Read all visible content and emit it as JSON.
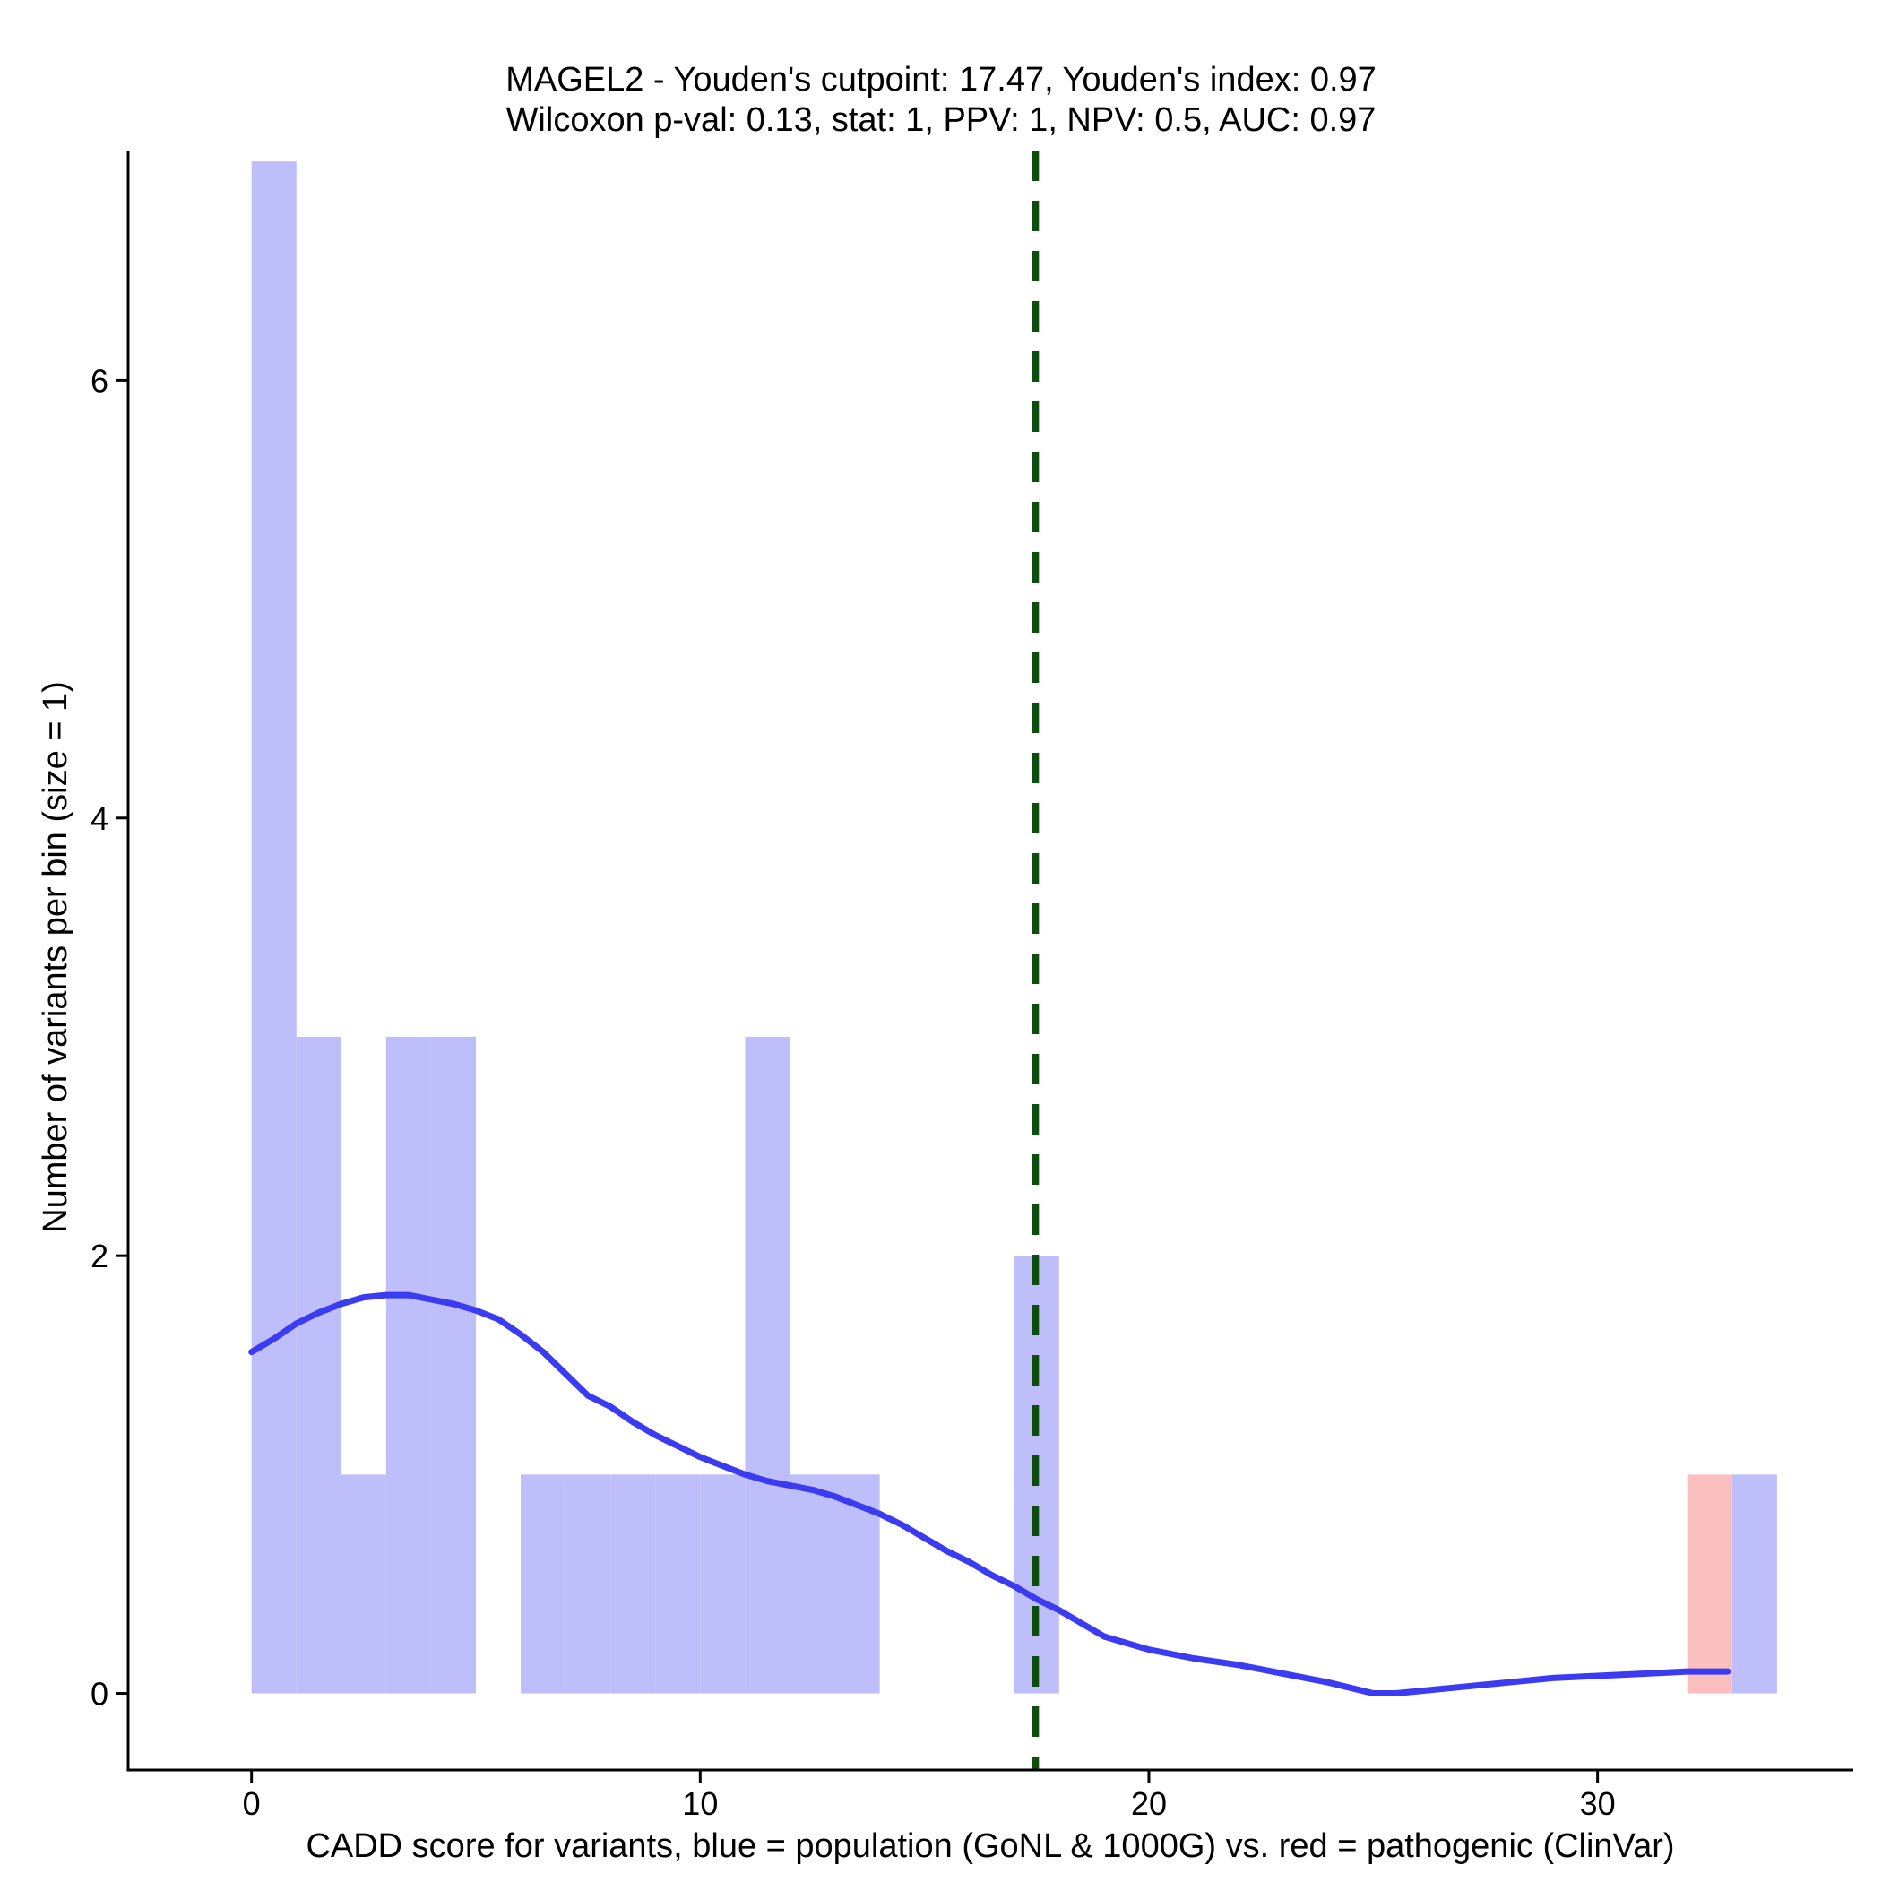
{
  "chart_data": {
    "type": "bar",
    "title": "MAGEL2 - Youden's cutpoint: 17.47, Youden's index: 0.97",
    "subtitle": "Wilcoxon p-val: 0.13, stat: 1, PPV: 1, NPV: 0.5, AUC: 0.97",
    "xlabel": "CADD score for variants, blue = population (GoNL & 1000G) vs. red = pathogenic (ClinVar)",
    "ylabel": "Number of variants per bin (size = 1)",
    "xlim": [
      -2.75,
      35.7
    ],
    "ylim": [
      -0.35,
      7.05
    ],
    "x_ticks": [
      0,
      10,
      20,
      30
    ],
    "y_ticks": [
      0,
      2,
      4,
      6
    ],
    "grid": false,
    "cutpoint": 17.47,
    "series": [
      {
        "name": "population",
        "color": "#bebefb",
        "bins": [
          {
            "x0": 0,
            "x1": 1,
            "count": 7
          },
          {
            "x0": 1,
            "x1": 2,
            "count": 3
          },
          {
            "x0": 2,
            "x1": 3,
            "count": 1
          },
          {
            "x0": 3,
            "x1": 4,
            "count": 3
          },
          {
            "x0": 4,
            "x1": 5,
            "count": 3
          },
          {
            "x0": 6,
            "x1": 7,
            "count": 1
          },
          {
            "x0": 7,
            "x1": 8,
            "count": 1
          },
          {
            "x0": 8,
            "x1": 9,
            "count": 1
          },
          {
            "x0": 9,
            "x1": 10,
            "count": 1
          },
          {
            "x0": 10,
            "x1": 11,
            "count": 1
          },
          {
            "x0": 11,
            "x1": 12,
            "count": 3
          },
          {
            "x0": 12,
            "x1": 13,
            "count": 1
          },
          {
            "x0": 13,
            "x1": 14,
            "count": 1
          },
          {
            "x0": 17,
            "x1": 18,
            "count": 2
          },
          {
            "x0": 33,
            "x1": 34,
            "count": 1
          }
        ]
      },
      {
        "name": "pathogenic",
        "color": "#fcbfc0",
        "bins": [
          {
            "x0": 32,
            "x1": 33,
            "count": 1
          }
        ]
      }
    ],
    "density": {
      "color": "#3b3bf2",
      "x": [
        0,
        0.5,
        1,
        1.5,
        2,
        2.5,
        3,
        3.5,
        4,
        4.5,
        5,
        5.5,
        6,
        6.5,
        7,
        7.5,
        8,
        8.5,
        9,
        9.5,
        10,
        10.5,
        11,
        11.5,
        12,
        12.5,
        13,
        13.5,
        14,
        14.5,
        15,
        15.5,
        16,
        16.5,
        17,
        17.5,
        18,
        18.5,
        19,
        19.5,
        20,
        21,
        22,
        23,
        24,
        25,
        25.5,
        26,
        27,
        28,
        29,
        30,
        31,
        32,
        32.9
      ],
      "y": [
        1.56,
        1.62,
        1.69,
        1.74,
        1.78,
        1.81,
        1.82,
        1.82,
        1.8,
        1.78,
        1.75,
        1.71,
        1.64,
        1.56,
        1.46,
        1.36,
        1.31,
        1.24,
        1.18,
        1.13,
        1.08,
        1.04,
        1.0,
        0.97,
        0.95,
        0.93,
        0.9,
        0.86,
        0.82,
        0.77,
        0.71,
        0.65,
        0.6,
        0.54,
        0.49,
        0.43,
        0.38,
        0.32,
        0.26,
        0.23,
        0.2,
        0.16,
        0.13,
        0.09,
        0.05,
        0.0,
        0.0,
        0.01,
        0.03,
        0.05,
        0.07,
        0.08,
        0.09,
        0.1,
        0.1
      ]
    }
  }
}
